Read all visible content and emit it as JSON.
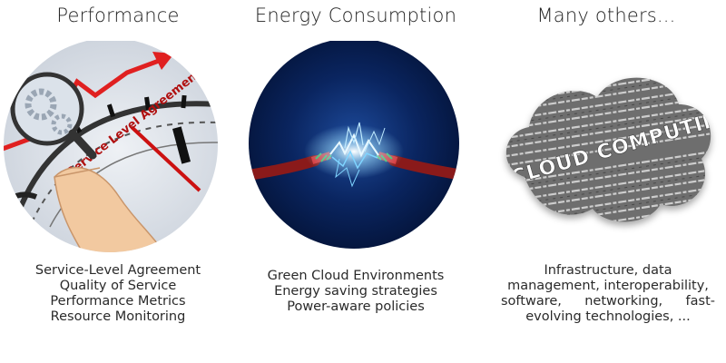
{
  "panels": [
    {
      "title": "Performance",
      "graphic_text": "Service Level Agreement",
      "caption_lines": [
        "Service-Level Agreement",
        "Quality of Service",
        "Performance Metrics",
        "Resource Monitoring"
      ]
    },
    {
      "title": "Energy Consumption",
      "caption_lines": [
        "Green Cloud Environments",
        "Energy saving strategies",
        "Power-aware policies"
      ]
    },
    {
      "title": "Many others...",
      "graphic_text": "CLOUD COMPUTING",
      "caption_lines": [
        "Infrastructure, data",
        "management, interoperability,",
        "software, networking,    fast-",
        "evolving technologies, ..."
      ]
    }
  ],
  "colors": {
    "arrow_red": "#e02020",
    "needle_red": "#cc1111",
    "spark_blue": "#7fd4ff",
    "circle_dark": "#04143a"
  }
}
